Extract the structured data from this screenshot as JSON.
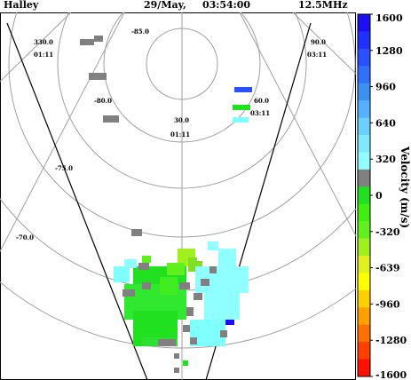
{
  "header": {
    "station": "Halley",
    "date": "29/May,",
    "time": "03:54:00",
    "frequency": "12.5MHz"
  },
  "chart_data": {
    "type": "heatmap",
    "title": "",
    "colorbar": {
      "label": "Velocity (m/s)",
      "ticks": [
        "1600",
        "1280",
        "960",
        "640",
        "320",
        "0",
        "-320",
        "-639",
        "-960",
        "-1280",
        "-1600"
      ],
      "range": [
        -1600,
        1600
      ],
      "colors": [
        "#1c10f0",
        "#2030ff",
        "#2a50ff",
        "#2f70ff",
        "#3d8ff0",
        "#55b0ff",
        "#6ad0ff",
        "#80e8ff",
        "#90ffff",
        "#808080",
        "#20e020",
        "#40ee10",
        "#60f020",
        "#a0f020",
        "#e0f020",
        "#ffff00",
        "#ffd000",
        "#ffa000",
        "#ff7000",
        "#ff4000",
        "#ff1000"
      ]
    },
    "grid_labels": {
      "latitude": [
        "-85.0",
        "-80.0",
        "-75.0",
        "-70.0"
      ],
      "mlt": [
        {
          "lon": "330.0",
          "mlt": "01:11"
        },
        {
          "lon": "30.0",
          "mlt": "01:11"
        },
        {
          "lon": "60.0",
          "mlt": "03:11"
        },
        {
          "lon": "90.0",
          "mlt": "03:11"
        }
      ]
    },
    "ground_scatter_color": "#808080"
  }
}
